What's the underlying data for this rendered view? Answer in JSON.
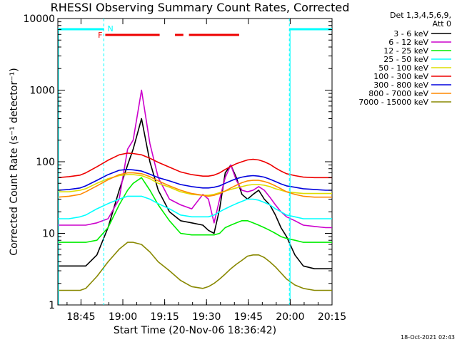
{
  "chart_data": {
    "type": "line",
    "title": "RHESSI Observing Summary Count Rates, Corrected",
    "xlabel": "Start Time (20-Nov-06 18:36:42)",
    "ylabel": "Corrected Count Rate (s⁻¹ detector⁻¹)",
    "y_scale": "log",
    "ylim": [
      1,
      10000
    ],
    "xlim_minutes": [
      0,
      98.3
    ],
    "x_ticks": [
      {
        "label": "18:45",
        "minute": 8.3
      },
      {
        "label": "19:00",
        "minute": 23.3
      },
      {
        "label": "19:15",
        "minute": 38.3
      },
      {
        "label": "19:30",
        "minute": 53.3
      },
      {
        "label": "19:45",
        "minute": 68.3
      },
      {
        "label": "20:00",
        "minute": 83.3
      },
      {
        "label": "20:15",
        "minute": 98.3
      }
    ],
    "y_ticks": [
      "1",
      "10",
      "100",
      "1000",
      "10000"
    ],
    "legend_header": "Det 1,3,4,5,6,9,",
    "legend_att": "Att 0",
    "legend_position": "right",
    "x": [
      0,
      4,
      8,
      10,
      14,
      18,
      22,
      25,
      27,
      30,
      33,
      36,
      40,
      44,
      48,
      52,
      54,
      56,
      58,
      60,
      62,
      64,
      66,
      68,
      70,
      72,
      74,
      76,
      78,
      80,
      82,
      85,
      88,
      92,
      96,
      98.3
    ],
    "series": [
      {
        "name": "3 - 6 keV",
        "color": "#000000",
        "values": [
          3.5,
          3.5,
          3.5,
          3.5,
          5,
          12,
          40,
          90,
          150,
          400,
          100,
          40,
          20,
          15,
          14,
          13,
          11,
          10,
          22,
          70,
          90,
          60,
          35,
          30,
          35,
          40,
          30,
          25,
          18,
          12,
          9,
          5,
          3.5,
          3.2,
          3.2,
          3.2
        ]
      },
      {
        "name": "6 - 12 keV",
        "color": "#cc00cc",
        "values": [
          13,
          13,
          13,
          13,
          14,
          16,
          30,
          150,
          200,
          1000,
          180,
          60,
          30,
          25,
          22,
          35,
          30,
          14,
          30,
          60,
          90,
          55,
          40,
          38,
          40,
          45,
          40,
          32,
          25,
          20,
          17,
          15,
          13,
          12.5,
          12,
          12
        ]
      },
      {
        "name": "12 - 25 keV",
        "color": "#00ee00",
        "values": [
          7.5,
          7.5,
          7.5,
          7.5,
          8,
          12,
          25,
          40,
          50,
          60,
          40,
          25,
          15,
          10,
          9.5,
          9.5,
          9.5,
          9.5,
          10,
          12,
          13,
          14,
          15,
          15,
          14,
          13,
          12,
          11,
          10,
          9,
          8.5,
          8,
          7.5,
          7.5,
          7.5,
          7.5
        ]
      },
      {
        "name": "25 - 50 keV",
        "color": "#00ffff",
        "values": [
          16,
          16,
          17,
          18,
          22,
          26,
          30,
          33,
          33,
          33,
          30,
          26,
          22,
          18,
          17,
          17,
          17,
          18,
          20,
          22,
          24,
          26,
          28,
          30,
          30,
          29,
          27,
          25,
          22,
          20,
          18,
          17,
          16,
          16,
          16,
          16
        ]
      },
      {
        "name": "50 - 100 keV",
        "color": "#dddd00",
        "values": [
          38,
          38,
          40,
          42,
          50,
          58,
          64,
          66,
          66,
          64,
          58,
          50,
          44,
          38,
          35,
          34,
          34,
          35,
          37,
          39,
          41,
          43,
          45,
          47,
          48,
          48,
          47,
          45,
          42,
          40,
          38,
          37,
          36,
          36,
          36,
          36
        ]
      },
      {
        "name": "100 - 300 keV",
        "color": "#ee0000",
        "values": [
          60,
          62,
          65,
          70,
          85,
          105,
          125,
          132,
          130,
          125,
          112,
          98,
          84,
          72,
          66,
          63,
          63,
          65,
          70,
          78,
          86,
          94,
          100,
          106,
          108,
          106,
          100,
          92,
          82,
          74,
          68,
          64,
          61,
          60,
          60,
          60
        ]
      },
      {
        "name": "300 - 800 keV",
        "color": "#0000dd",
        "values": [
          40,
          41,
          43,
          46,
          55,
          66,
          76,
          78,
          77,
          74,
          67,
          60,
          54,
          48,
          45,
          43,
          43,
          44,
          46,
          50,
          54,
          58,
          61,
          63,
          64,
          63,
          61,
          57,
          53,
          49,
          46,
          44,
          42,
          41,
          40,
          40
        ]
      },
      {
        "name": "800 - 7000 keV",
        "color": "#ff8800",
        "values": [
          32,
          33,
          35,
          38,
          46,
          56,
          66,
          70,
          70,
          68,
          62,
          54,
          46,
          40,
          36,
          34,
          33,
          34,
          36,
          39,
          43,
          47,
          51,
          54,
          55,
          55,
          53,
          50,
          46,
          42,
          38,
          35,
          33,
          32,
          32,
          32
        ]
      },
      {
        "name": "7000 - 15000 keV",
        "color": "#888800",
        "values": [
          1.6,
          1.6,
          1.6,
          1.7,
          2.5,
          4,
          6,
          7.5,
          7.5,
          7,
          5.5,
          4,
          3,
          2.2,
          1.8,
          1.7,
          1.8,
          2,
          2.3,
          2.7,
          3.2,
          3.7,
          4.2,
          4.8,
          5,
          5,
          4.6,
          4,
          3.4,
          2.8,
          2.3,
          1.9,
          1.7,
          1.6,
          1.6,
          1.6
        ]
      }
    ],
    "flags": [
      {
        "kind": "saa",
        "label": "",
        "color": "#00ffff",
        "spans": [
          [
            0,
            16.5
          ],
          [
            83.0,
            98.3
          ]
        ]
      },
      {
        "kind": "night",
        "label": "N",
        "color": "#00ffff",
        "marks": [
          16.5,
          83.0
        ]
      },
      {
        "kind": "flare",
        "label": "F",
        "color": "#ee0000",
        "spans": [
          [
            17.0,
            36.5
          ],
          [
            42.0,
            45.0
          ],
          [
            47.0,
            65.0
          ]
        ]
      }
    ],
    "timestamp": "18-Oct-2021 02:43"
  }
}
